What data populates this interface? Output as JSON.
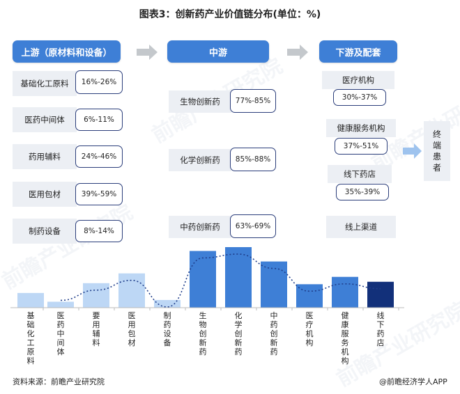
{
  "title": "图表3：创新药产业价值链分布(单位：%)",
  "sections": {
    "upstream": "上游（原材料和设备）",
    "midstream": "中游",
    "downstream": "下游及配套"
  },
  "upstream_items": [
    {
      "label": "基础化工原料",
      "range": "16%-26%"
    },
    {
      "label": "医药中间体",
      "range": "6%-11%"
    },
    {
      "label": "药用辅料",
      "range": "24%-46%"
    },
    {
      "label": "医用包材",
      "range": "39%-59%"
    },
    {
      "label": "制药设备",
      "range": "8%-14%"
    }
  ],
  "midstream_items": [
    {
      "label": "生物创新药",
      "range": "77%-85%"
    },
    {
      "label": "化学创新药",
      "range": "85%-88%"
    },
    {
      "label": "中药创新药",
      "range": "63%-69%"
    }
  ],
  "downstream_items": [
    {
      "label": "医疗机构",
      "range": "30%-37%"
    },
    {
      "label": "健康服务机构",
      "range": "37%-51%"
    },
    {
      "label": "线下药店",
      "range": "35%-39%"
    },
    {
      "label": "线上渠道",
      "range": ""
    }
  ],
  "end_user": "终端患者",
  "chart_data": {
    "type": "bar",
    "categories": [
      "基础化工原料",
      "医药中间体",
      "要用辅料",
      "医用包材",
      "制药设备",
      "生物创新药",
      "化学创新药",
      "中药创新药",
      "医疗机构",
      "健康服务机构",
      "线下药店"
    ],
    "values": [
      21,
      8.5,
      35,
      49,
      11,
      81,
      86.5,
      66,
      33.5,
      44,
      37
    ],
    "bar_colors": [
      "#bdd7f5",
      "#bdd7f5",
      "#bdd7f5",
      "#bdd7f5",
      "#bdd7f5",
      "#3e7fd6",
      "#3e7fd6",
      "#3e7fd6",
      "#3e7fd6",
      "#3e7fd6",
      "#12307a"
    ],
    "trend_line": "dotted",
    "trend_color": "#1f3d8a",
    "ylim": [
      0,
      90
    ],
    "grid": false
  },
  "source": "资料来源：前瞻产业研究院",
  "brand": "@前瞻经济学人APP",
  "watermark": "前瞻产业研究院"
}
